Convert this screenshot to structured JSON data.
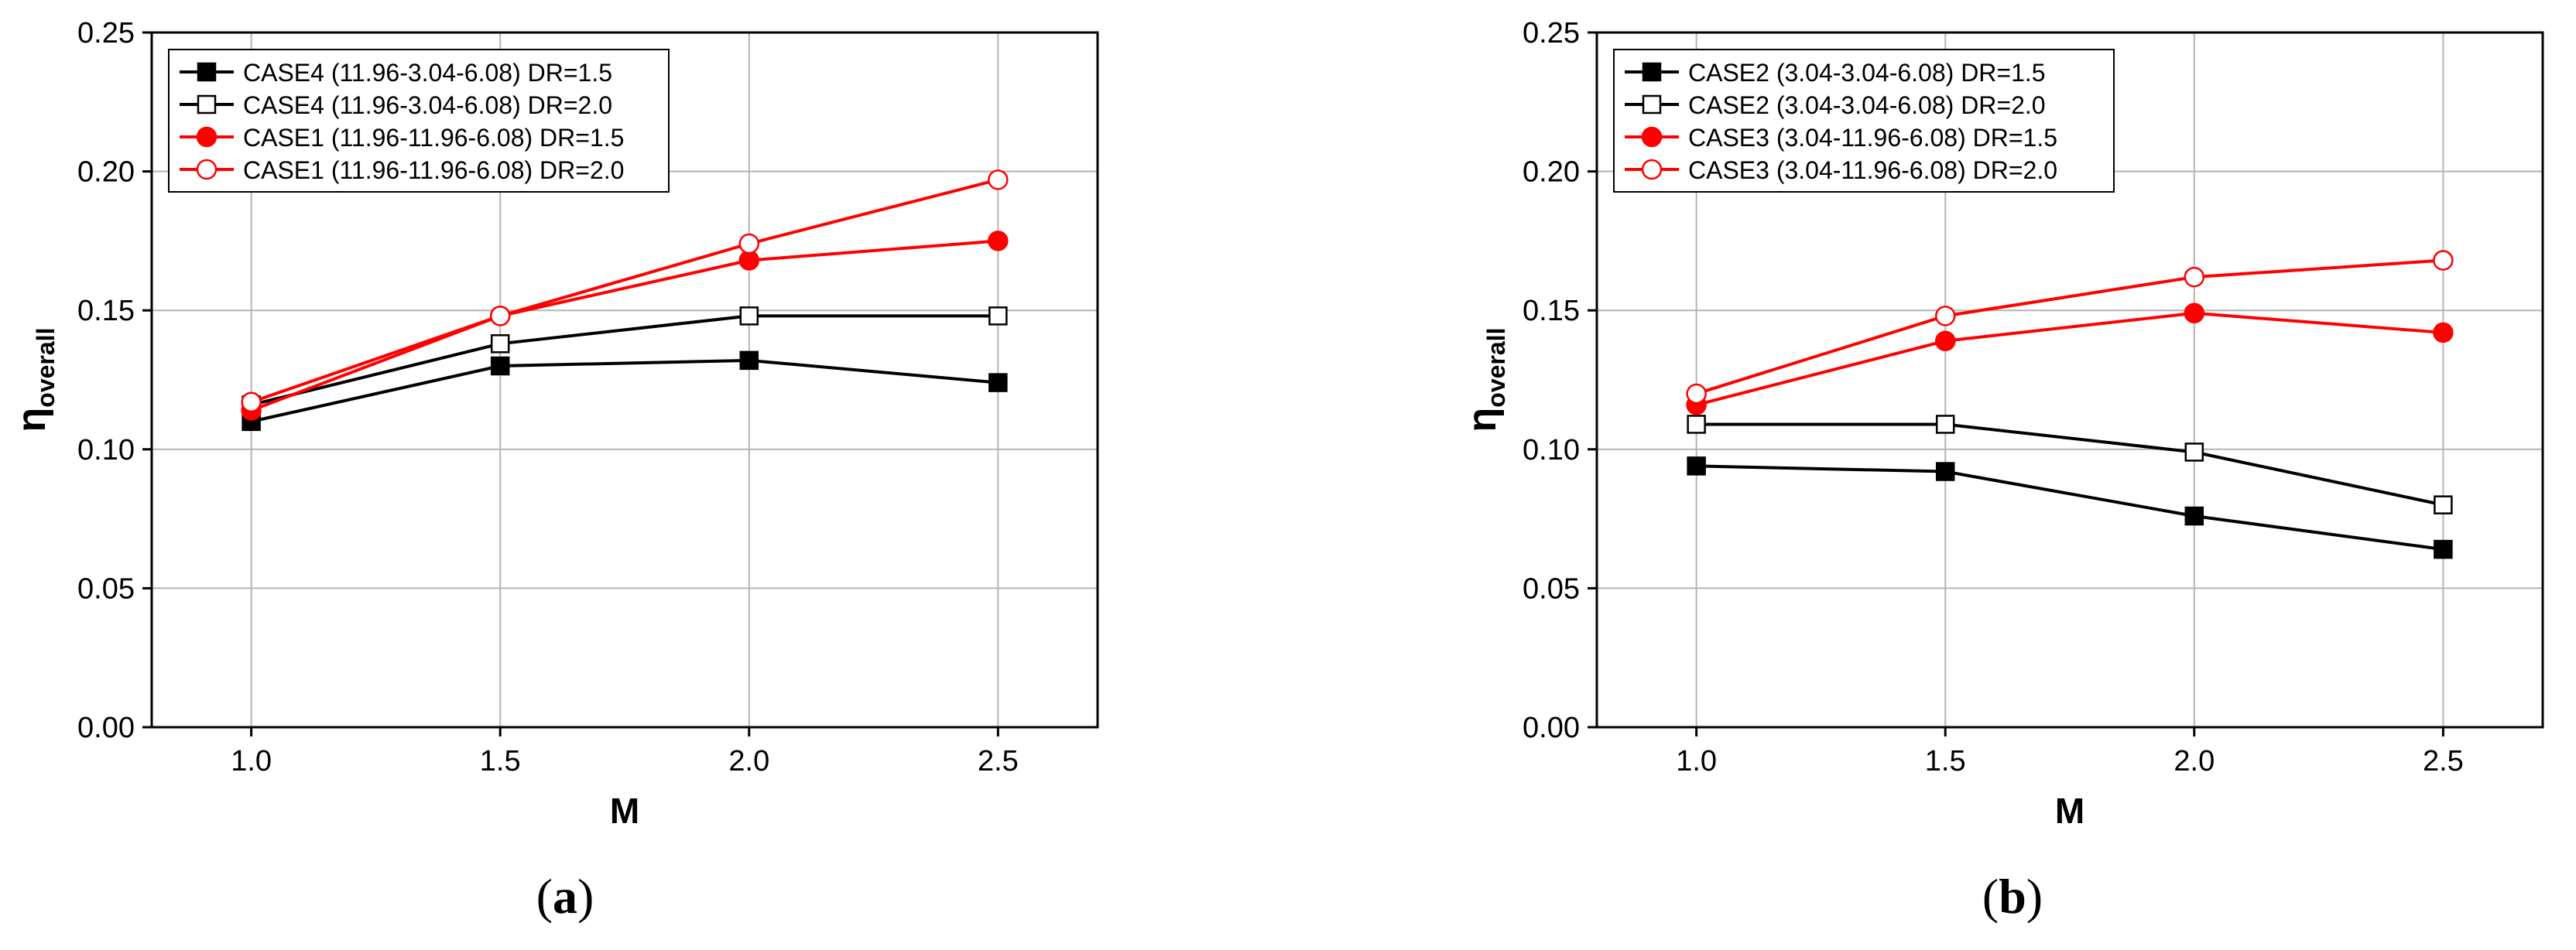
{
  "panels": [
    {
      "label": "a",
      "caption": "(a)"
    },
    {
      "label": "b",
      "caption": "(b)"
    }
  ],
  "colors": {
    "black": "#000000",
    "red": "#ff0000",
    "grid": "#b4b4b4"
  },
  "chart_data": [
    {
      "type": "line",
      "xlabel": "M",
      "ylabel_main": "η",
      "ylabel_sub": "overall",
      "x": [
        1.0,
        1.5,
        2.0,
        2.5
      ],
      "x_ticks": [
        "1.0",
        "1.5",
        "2.0",
        "2.5"
      ],
      "y_ticks": [
        "0.00",
        "0.05",
        "0.10",
        "0.15",
        "0.20",
        "0.25"
      ],
      "xlim": [
        0.8,
        2.7
      ],
      "ylim": [
        0.0,
        0.25
      ],
      "grid": true,
      "legend_position": "top-left",
      "series": [
        {
          "name": "CASE4 (11.96-3.04-6.08) DR=1.5",
          "values": [
            0.11,
            0.13,
            0.132,
            0.124
          ],
          "color": "#000000",
          "marker": "square-filled"
        },
        {
          "name": "CASE4 (11.96-3.04-6.08) DR=2.0",
          "values": [
            0.116,
            0.138,
            0.148,
            0.148
          ],
          "color": "#000000",
          "marker": "square-open"
        },
        {
          "name": "CASE1 (11.96-11.96-6.08) DR=1.5",
          "values": [
            0.114,
            0.148,
            0.168,
            0.175
          ],
          "color": "#ff0000",
          "marker": "circle-filled"
        },
        {
          "name": "CASE1 (11.96-11.96-6.08) DR=2.0",
          "values": [
            0.117,
            0.148,
            0.174,
            0.197
          ],
          "color": "#ff0000",
          "marker": "circle-open"
        }
      ]
    },
    {
      "type": "line",
      "xlabel": "M",
      "ylabel_main": "η",
      "ylabel_sub": "overall",
      "x": [
        1.0,
        1.5,
        2.0,
        2.5
      ],
      "x_ticks": [
        "1.0",
        "1.5",
        "2.0",
        "2.5"
      ],
      "y_ticks": [
        "0.00",
        "0.05",
        "0.10",
        "0.15",
        "0.20",
        "0.25"
      ],
      "xlim": [
        0.8,
        2.7
      ],
      "ylim": [
        0.0,
        0.25
      ],
      "grid": true,
      "legend_position": "top-left",
      "series": [
        {
          "name": "CASE2 (3.04-3.04-6.08) DR=1.5",
          "values": [
            0.094,
            0.092,
            0.076,
            0.064
          ],
          "color": "#000000",
          "marker": "square-filled"
        },
        {
          "name": "CASE2 (3.04-3.04-6.08) DR=2.0",
          "values": [
            0.109,
            0.109,
            0.099,
            0.08
          ],
          "color": "#000000",
          "marker": "square-open"
        },
        {
          "name": "CASE3 (3.04-11.96-6.08) DR=1.5",
          "values": [
            0.116,
            0.139,
            0.149,
            0.142
          ],
          "color": "#ff0000",
          "marker": "circle-filled"
        },
        {
          "name": "CASE3 (3.04-11.96-6.08) DR=2.0",
          "values": [
            0.12,
            0.148,
            0.162,
            0.168
          ],
          "color": "#ff0000",
          "marker": "circle-open"
        }
      ]
    }
  ]
}
